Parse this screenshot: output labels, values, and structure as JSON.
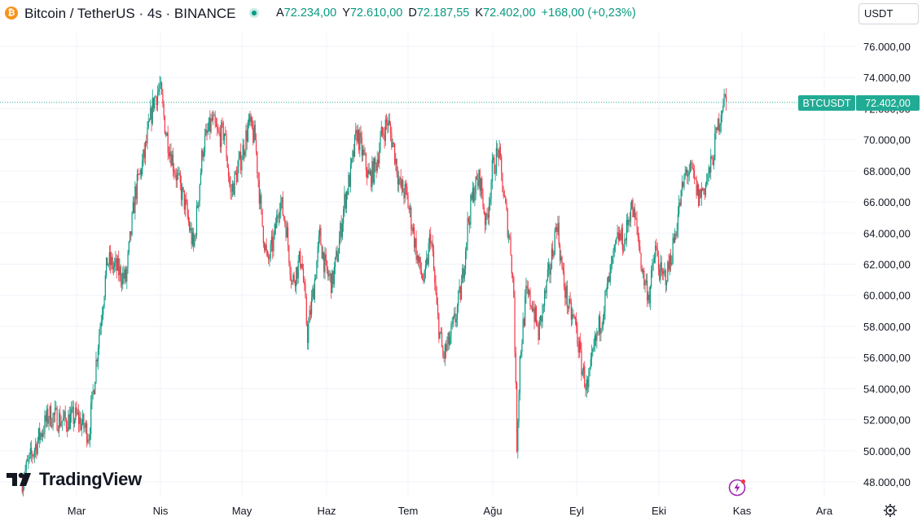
{
  "header": {
    "icon": "bitcoin-icon",
    "icon_glyph": "₿",
    "symbol_title": "Bitcoin / TetherUS · 4s · BINANCE",
    "ohlc": {
      "open_label": "A",
      "open_value": "72.234,00",
      "high_label": "Y",
      "high_value": "72.610,00",
      "low_label": "D",
      "low_value": "72.187,55",
      "close_label": "K",
      "close_value": "72.402,00",
      "change": "+168,00 (+0,23%)"
    },
    "currency": "USDT"
  },
  "branding": {
    "logo_text": "TradingView"
  },
  "colors": {
    "up": "#089981",
    "down": "#f23645",
    "grid": "#f0f3fa",
    "axis_text": "#131722",
    "price_tag": "#22ab94"
  },
  "chart_data": {
    "type": "candlestick",
    "title": "Bitcoin / TetherUS · 4s · BINANCE",
    "interval": "4s",
    "xlabel": "",
    "ylabel": "USDT",
    "ylim": [
      47000,
      77000
    ],
    "x_ticks": [
      "Mar",
      "Nis",
      "May",
      "Haz",
      "Tem",
      "Ağu",
      "Eyl",
      "Eki",
      "Kas",
      "Ara"
    ],
    "y_ticks": [
      48000,
      50000,
      52000,
      54000,
      56000,
      58000,
      60000,
      62000,
      64000,
      66000,
      68000,
      70000,
      72000,
      74000,
      76000
    ],
    "y_tick_labels": [
      "48.000,00",
      "50.000,00",
      "52.000,00",
      "54.000,00",
      "56.000,00",
      "58.000,00",
      "60.000,00",
      "62.000,00",
      "64.000,00",
      "66.000,00",
      "68.000,00",
      "70.000,00",
      "72.000,00",
      "74.000,00",
      "76.000,00"
    ],
    "last_price": 72402,
    "last_price_label": "72.402,00",
    "symbol_tag": "BTCUSDT",
    "price_path": [
      [
        0,
        48000
      ],
      [
        5,
        50500
      ],
      [
        9,
        52300
      ],
      [
        14,
        51900
      ],
      [
        18,
        52200
      ],
      [
        22,
        51100
      ],
      [
        25,
        57000
      ],
      [
        28,
        62200
      ],
      [
        31,
        61700
      ],
      [
        34,
        61000
      ],
      [
        37,
        66500
      ],
      [
        40,
        69000
      ],
      [
        43,
        72500
      ],
      [
        45,
        73400
      ],
      [
        47,
        70500
      ],
      [
        50,
        68000
      ],
      [
        53,
        66000
      ],
      [
        56,
        63000
      ],
      [
        59,
        69500
      ],
      [
        62,
        71200
      ],
      [
        64,
        70200
      ],
      [
        66,
        70500
      ],
      [
        68,
        66500
      ],
      [
        71,
        68500
      ],
      [
        74,
        71000
      ],
      [
        76,
        70000
      ],
      [
        78,
        65000
      ],
      [
        80,
        62000
      ],
      [
        82,
        63500
      ],
      [
        84,
        66200
      ],
      [
        86,
        64500
      ],
      [
        88,
        60800
      ],
      [
        91,
        62500
      ],
      [
        93,
        57500
      ],
      [
        95,
        60500
      ],
      [
        97,
        63800
      ],
      [
        99,
        61500
      ],
      [
        101,
        60800
      ],
      [
        103,
        63000
      ],
      [
        105,
        66000
      ],
      [
        107,
        67800
      ],
      [
        109,
        70500
      ],
      [
        111,
        69000
      ],
      [
        113,
        67500
      ],
      [
        115,
        68200
      ],
      [
        117,
        70200
      ],
      [
        119,
        71200
      ],
      [
        121,
        69500
      ],
      [
        123,
        67000
      ],
      [
        125,
        66500
      ],
      [
        127,
        64500
      ],
      [
        129,
        62000
      ],
      [
        131,
        60800
      ],
      [
        133,
        64000
      ],
      [
        135,
        59000
      ],
      [
        137,
        56000
      ],
      [
        139,
        57000
      ],
      [
        141,
        58500
      ],
      [
        143,
        60500
      ],
      [
        145,
        64500
      ],
      [
        147,
        66800
      ],
      [
        149,
        67500
      ],
      [
        151,
        64500
      ],
      [
        153,
        68000
      ],
      [
        155,
        69300
      ],
      [
        157,
        66000
      ],
      [
        159,
        63000
      ],
      [
        160,
        60000
      ],
      [
        161,
        50500
      ],
      [
        162,
        56000
      ],
      [
        164,
        60000
      ],
      [
        166,
        59500
      ],
      [
        168,
        57500
      ],
      [
        170,
        59800
      ],
      [
        172,
        62000
      ],
      [
        174,
        64800
      ],
      [
        176,
        61000
      ],
      [
        178,
        59000
      ],
      [
        180,
        58200
      ],
      [
        182,
        55500
      ],
      [
        184,
        53800
      ],
      [
        186,
        56500
      ],
      [
        188,
        58200
      ],
      [
        190,
        60000
      ],
      [
        192,
        62000
      ],
      [
        194,
        63800
      ],
      [
        196,
        63400
      ],
      [
        198,
        65800
      ],
      [
        200,
        64300
      ],
      [
        202,
        61200
      ],
      [
        204,
        60000
      ],
      [
        206,
        63000
      ],
      [
        208,
        61000
      ],
      [
        210,
        61500
      ],
      [
        212,
        63500
      ],
      [
        214,
        66000
      ],
      [
        216,
        68000
      ],
      [
        218,
        67800
      ],
      [
        220,
        66300
      ],
      [
        222,
        67000
      ],
      [
        224,
        68200
      ],
      [
        226,
        70500
      ],
      [
        228,
        72600
      ],
      [
        229,
        72400
      ]
    ]
  },
  "axis_settings": {
    "icon": "gear-icon"
  }
}
